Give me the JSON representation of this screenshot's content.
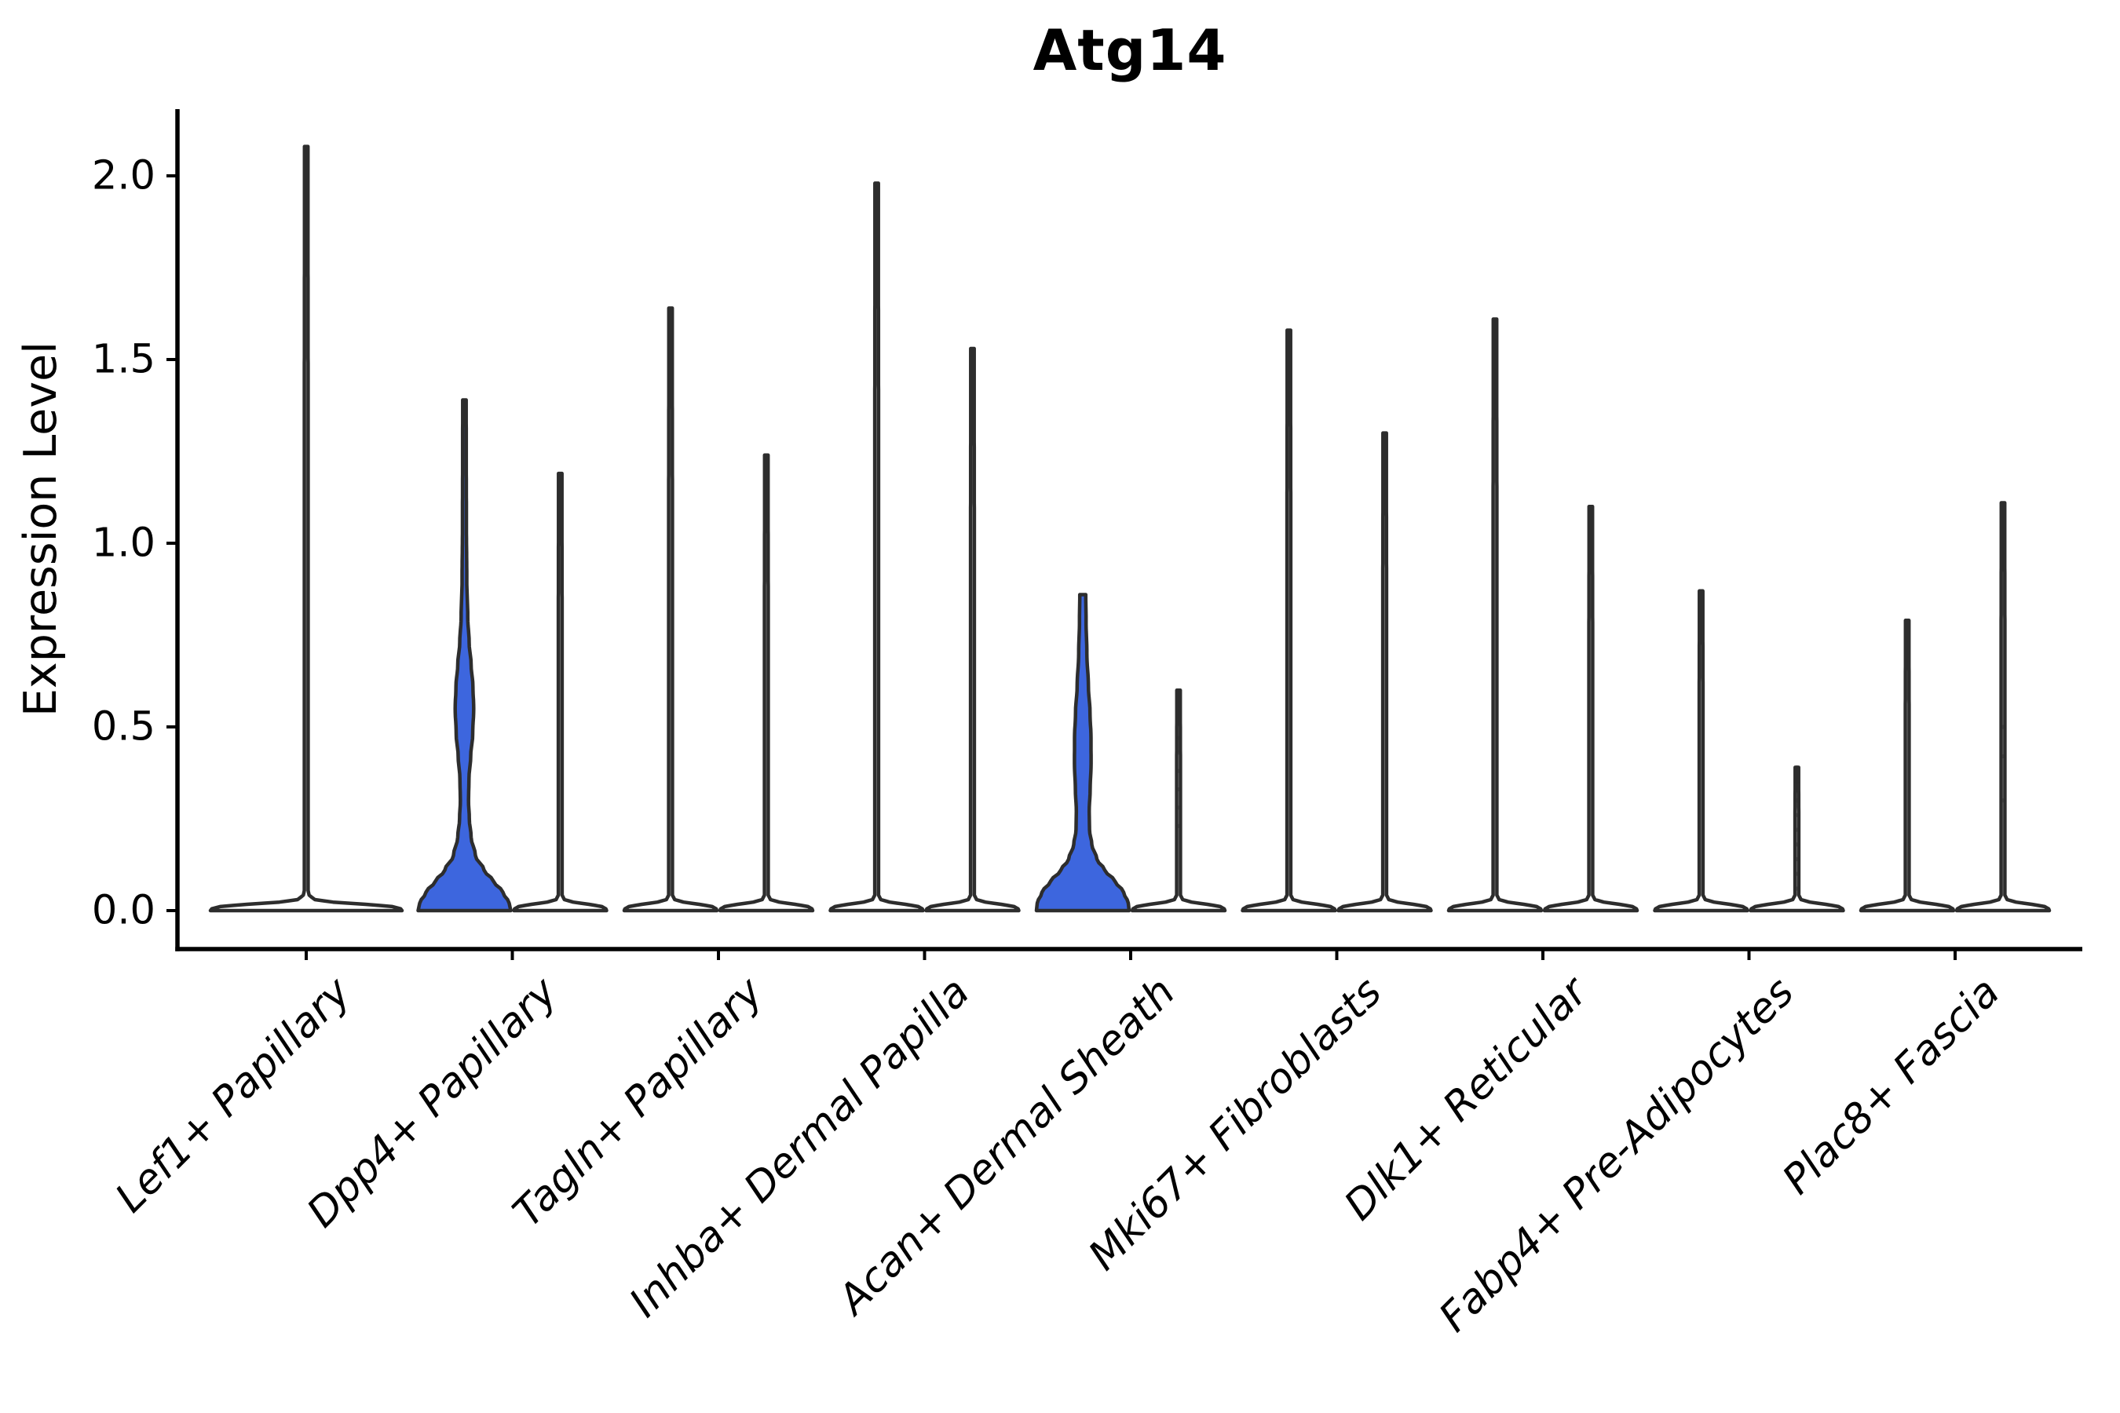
{
  "chart_data": {
    "type": "violin",
    "title": "Atg14",
    "ylabel": "Expression Level",
    "xlabel": "",
    "ylim": [
      0,
      2.2
    ],
    "yticks": [
      "0.0",
      "0.5",
      "1.0",
      "1.5",
      "2.0"
    ],
    "ytick_values": [
      0.0,
      0.5,
      1.0,
      1.5,
      2.0
    ],
    "grid": false,
    "legend": "none",
    "categories": [
      "Lef1+ Papillary",
      "Dpp4+ Papillary",
      "Tagln+ Papillary",
      "Inhba+ Dermal Papilla",
      "Acan+ Dermal Sheath",
      "Mki67+ Fibroblasts",
      "Dlk1+ Reticular",
      "Fabp4+ Pre-Adipocytes",
      "Plac8+ Fascia"
    ],
    "palette": {
      "highlight_fill": "#3D66DE",
      "default_fill": "#FFFFFF",
      "edge": "#2D2D2D",
      "axis": "#000000",
      "text": "#000000",
      "dot": "rgba(45,45,45,0.45)"
    },
    "violins": [
      {
        "category": "Lef1+ Papillary",
        "position": "center",
        "width": "double",
        "shape": "spike",
        "fill": "default",
        "max": 2.08
      },
      {
        "category": "Dpp4+ Papillary",
        "position": "left",
        "width": "normal",
        "shape": "bell",
        "fill": "highlight",
        "max": 1.39,
        "profile": [
          [
            0,
            59
          ],
          [
            0.02,
            57
          ],
          [
            0.05,
            49
          ],
          [
            0.08,
            37
          ],
          [
            0.11,
            25
          ],
          [
            0.15,
            14
          ],
          [
            0.2,
            8.5
          ],
          [
            0.25,
            6.2
          ],
          [
            0.3,
            5.2
          ],
          [
            0.36,
            5.8
          ],
          [
            0.42,
            8.0
          ],
          [
            0.48,
            10.5
          ],
          [
            0.55,
            11.8
          ],
          [
            0.61,
            10.8
          ],
          [
            0.67,
            8.5
          ],
          [
            0.73,
            6.0
          ],
          [
            0.8,
            4.2
          ],
          [
            0.9,
            3.0
          ],
          [
            1.05,
            2.5
          ],
          [
            1.25,
            2.3
          ],
          [
            1.39,
            2.2
          ]
        ]
      },
      {
        "category": "Dpp4+ Papillary",
        "position": "right",
        "width": "normal",
        "shape": "spike",
        "fill": "default",
        "max": 1.19
      },
      {
        "category": "Tagln+ Papillary",
        "position": "left",
        "width": "normal",
        "shape": "spike",
        "fill": "default",
        "max": 1.64
      },
      {
        "category": "Tagln+ Papillary",
        "position": "right",
        "width": "normal",
        "shape": "spike",
        "fill": "default",
        "max": 1.24
      },
      {
        "category": "Inhba+ Dermal Papilla",
        "position": "left",
        "width": "normal",
        "shape": "spike",
        "fill": "default",
        "max": 1.98
      },
      {
        "category": "Inhba+ Dermal Papilla",
        "position": "right",
        "width": "normal",
        "shape": "spike",
        "fill": "default",
        "max": 1.53
      },
      {
        "category": "Acan+ Dermal Sheath",
        "position": "left",
        "width": "normal",
        "shape": "bell",
        "fill": "highlight",
        "max": 0.86,
        "profile": [
          [
            0,
            59
          ],
          [
            0.02,
            58
          ],
          [
            0.05,
            52
          ],
          [
            0.08,
            41
          ],
          [
            0.11,
            28
          ],
          [
            0.14,
            18
          ],
          [
            0.18,
            11.5
          ],
          [
            0.22,
            8.6
          ],
          [
            0.27,
            8.2
          ],
          [
            0.33,
            9.4
          ],
          [
            0.4,
            10.6
          ],
          [
            0.47,
            10.5
          ],
          [
            0.54,
            9.2
          ],
          [
            0.61,
            7.2
          ],
          [
            0.7,
            5.2
          ],
          [
            0.79,
            4.2
          ],
          [
            0.86,
            3.8
          ]
        ]
      },
      {
        "category": "Acan+ Dermal Sheath",
        "position": "right",
        "width": "normal",
        "shape": "spike",
        "fill": "default",
        "max": 0.6,
        "dots": [
          0.23,
          0.28,
          0.33,
          0.38,
          0.43,
          0.47
        ]
      },
      {
        "category": "Mki67+ Fibroblasts",
        "position": "left",
        "width": "normal",
        "shape": "spike",
        "fill": "default",
        "max": 1.58
      },
      {
        "category": "Mki67+ Fibroblasts",
        "position": "right",
        "width": "normal",
        "shape": "spike",
        "fill": "default",
        "max": 1.3
      },
      {
        "category": "Dlk1+ Reticular",
        "position": "left",
        "width": "normal",
        "shape": "spike",
        "fill": "default",
        "max": 1.61
      },
      {
        "category": "Dlk1+ Reticular",
        "position": "right",
        "width": "normal",
        "shape": "spike",
        "fill": "default",
        "max": 1.1
      },
      {
        "category": "Fabp4+ Pre-Adipocytes",
        "position": "left",
        "width": "normal",
        "shape": "spike",
        "fill": "default",
        "max": 0.87
      },
      {
        "category": "Fabp4+ Pre-Adipocytes",
        "position": "right",
        "width": "normal",
        "shape": "spike",
        "fill": "default",
        "max": 0.39,
        "dots": [
          0.06,
          0.1,
          0.14,
          0.18,
          0.22,
          0.26,
          0.3,
          0.35,
          0.39
        ]
      },
      {
        "category": "Plac8+ Fascia",
        "position": "left",
        "width": "normal",
        "shape": "spike",
        "fill": "default",
        "max": 0.79
      },
      {
        "category": "Plac8+ Fascia",
        "position": "right",
        "width": "normal",
        "shape": "spike",
        "fill": "default",
        "max": 1.11,
        "dots": [
          0.3,
          0.42,
          0.5
        ]
      }
    ]
  }
}
